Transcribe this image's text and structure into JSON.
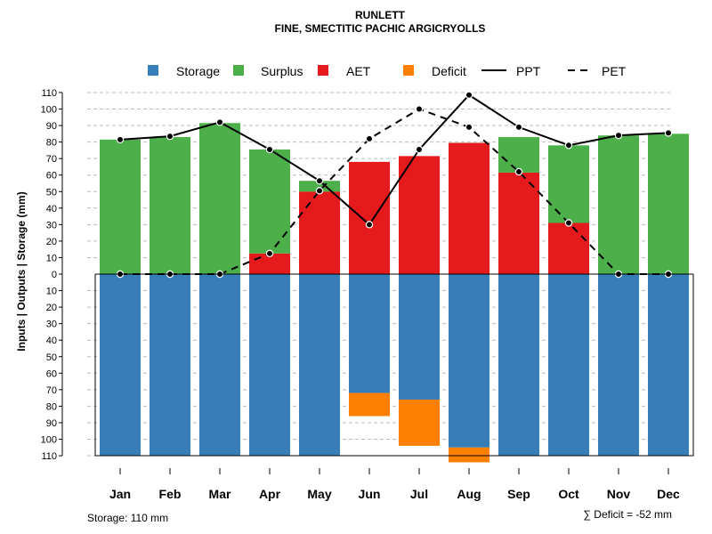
{
  "colors": {
    "storage": "#377EB8",
    "surplus": "#4DAF4A",
    "aet": "#E41A1C",
    "deficit": "#FF7F00",
    "grid": "#bbbbbb",
    "line": "#000000"
  },
  "chart_data": {
    "type": "bar",
    "title": "RUNLETT",
    "subtitle": "FINE, SMECTITIC PACHIC ARGICRYOLLS",
    "ylabel": "Inputs | Outputs | Storage    (mm)",
    "ylim": [
      -110,
      110
    ],
    "y_ticks": [
      -110,
      -100,
      -90,
      -80,
      -70,
      -60,
      -50,
      -40,
      -30,
      -20,
      -10,
      0,
      10,
      20,
      30,
      40,
      50,
      60,
      70,
      80,
      90,
      100,
      110
    ],
    "y_tick_labels": [
      "110",
      "100",
      "90",
      "80",
      "70",
      "60",
      "50",
      "40",
      "30",
      "20",
      "10",
      "0",
      "10",
      "20",
      "30",
      "40",
      "50",
      "60",
      "70",
      "80",
      "90",
      "100",
      "110"
    ],
    "categories": [
      "Jan",
      "Feb",
      "Mar",
      "Apr",
      "May",
      "Jun",
      "Jul",
      "Aug",
      "Sep",
      "Oct",
      "Nov",
      "Dec"
    ],
    "legend": [
      "Storage",
      "Surplus",
      "AET",
      "Deficit",
      "PPT",
      "PET"
    ],
    "series": [
      {
        "name": "Storage",
        "values": [
          110,
          110,
          110,
          110,
          110,
          72,
          76,
          105,
          110,
          110,
          110,
          110
        ]
      },
      {
        "name": "Deficit",
        "values": [
          0,
          0,
          0,
          0,
          0,
          14,
          28,
          9,
          0,
          0,
          0,
          0
        ]
      },
      {
        "name": "AET",
        "values": [
          0,
          0,
          0,
          12.5,
          50,
          68,
          71.5,
          79.5,
          61.5,
          31,
          0,
          0
        ]
      },
      {
        "name": "Surplus",
        "values": [
          81.5,
          83,
          91.5,
          63,
          6.5,
          0,
          0,
          0,
          21.5,
          47,
          84,
          85
        ]
      },
      {
        "name": "PPT",
        "values": [
          81.5,
          83.5,
          92,
          75.5,
          56.5,
          30,
          75.5,
          108.5,
          89,
          78,
          84,
          85.5
        ]
      },
      {
        "name": "PET",
        "values": [
          0,
          0,
          0,
          12.5,
          50.5,
          82,
          100,
          89,
          62,
          31,
          0,
          0
        ]
      }
    ],
    "storage_capacity_label": "Storage: 110 mm",
    "deficit_total_label": "∑ Deficit = -52 mm"
  }
}
